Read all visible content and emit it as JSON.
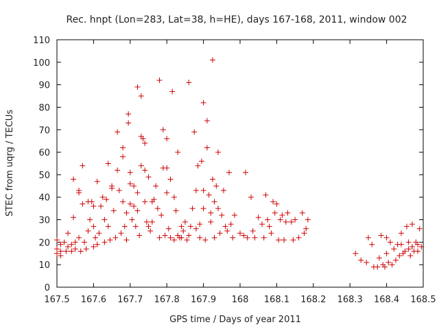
{
  "chart_data": {
    "type": "scatter",
    "title": "Rec. hnpt (Lon=283, Lat=38, h=HE), days 167-168, 2011, window 002",
    "xlabel": "GPS time / Days of year 2011",
    "ylabel": "STEC from uqrg / TECUs",
    "xlim": [
      167.5,
      168.5
    ],
    "ylim": [
      0,
      110
    ],
    "xticks": [
      "167.5",
      "167.6",
      "167.7",
      "167.8",
      "167.9",
      "168",
      "168.1",
      "168.2",
      "168.3",
      "168.4",
      "168.5"
    ],
    "yticks": [
      "0",
      "10",
      "20",
      "30",
      "40",
      "50",
      "60",
      "70",
      "80",
      "90",
      "100",
      "110"
    ],
    "marker": "+",
    "color": "#cc0000",
    "grid": false,
    "series": [
      {
        "points": [
          [
            167.5,
            15
          ],
          [
            167.5,
            17
          ],
          [
            167.5,
            21
          ],
          [
            167.51,
            14
          ],
          [
            167.51,
            16
          ],
          [
            167.51,
            19
          ],
          [
            167.52,
            20
          ],
          [
            167.525,
            16
          ],
          [
            167.53,
            24
          ],
          [
            167.53,
            18
          ],
          [
            167.54,
            19
          ],
          [
            167.54,
            16
          ],
          [
            167.545,
            31
          ],
          [
            167.545,
            48
          ],
          [
            167.55,
            20
          ],
          [
            167.55,
            17
          ],
          [
            167.56,
            43
          ],
          [
            167.56,
            42
          ],
          [
            167.56,
            22
          ],
          [
            167.565,
            16
          ],
          [
            167.57,
            37
          ],
          [
            167.57,
            54
          ],
          [
            167.575,
            20
          ],
          [
            167.58,
            17
          ],
          [
            167.585,
            25
          ],
          [
            167.585,
            38
          ],
          [
            167.59,
            30
          ],
          [
            167.595,
            38
          ],
          [
            167.6,
            36
          ],
          [
            167.6,
            27
          ],
          [
            167.6,
            18
          ],
          [
            167.605,
            22
          ],
          [
            167.61,
            47
          ],
          [
            167.61,
            19
          ],
          [
            167.615,
            24
          ],
          [
            167.62,
            36
          ],
          [
            167.625,
            40
          ],
          [
            167.63,
            30
          ],
          [
            167.63,
            20
          ],
          [
            167.635,
            39
          ],
          [
            167.64,
            55
          ],
          [
            167.64,
            27
          ],
          [
            167.645,
            21
          ],
          [
            167.65,
            45
          ],
          [
            167.65,
            44
          ],
          [
            167.655,
            34
          ],
          [
            167.66,
            22
          ],
          [
            167.665,
            52
          ],
          [
            167.665,
            69
          ],
          [
            167.67,
            43
          ],
          [
            167.675,
            24
          ],
          [
            167.68,
            62
          ],
          [
            167.68,
            58
          ],
          [
            167.68,
            38
          ],
          [
            167.685,
            27
          ],
          [
            167.69,
            33
          ],
          [
            167.69,
            21
          ],
          [
            167.695,
            77
          ],
          [
            167.695,
            73
          ],
          [
            167.7,
            51
          ],
          [
            167.7,
            46
          ],
          [
            167.7,
            37
          ],
          [
            167.705,
            30
          ],
          [
            167.71,
            36
          ],
          [
            167.71,
            45
          ],
          [
            167.715,
            27
          ],
          [
            167.72,
            89
          ],
          [
            167.72,
            42
          ],
          [
            167.72,
            34
          ],
          [
            167.725,
            23
          ],
          [
            167.73,
            85
          ],
          [
            167.73,
            67
          ],
          [
            167.73,
            54
          ],
          [
            167.735,
            66
          ],
          [
            167.74,
            64
          ],
          [
            167.74,
            52
          ],
          [
            167.74,
            38
          ],
          [
            167.745,
            29
          ],
          [
            167.75,
            27
          ],
          [
            167.75,
            49
          ],
          [
            167.755,
            25
          ],
          [
            167.76,
            38
          ],
          [
            167.76,
            29
          ],
          [
            167.765,
            39
          ],
          [
            167.77,
            45
          ],
          [
            167.775,
            35
          ],
          [
            167.78,
            92
          ],
          [
            167.78,
            22
          ],
          [
            167.785,
            32
          ],
          [
            167.79,
            53
          ],
          [
            167.79,
            70
          ],
          [
            167.795,
            23
          ],
          [
            167.8,
            66
          ],
          [
            167.8,
            53
          ],
          [
            167.8,
            42
          ],
          [
            167.805,
            26
          ],
          [
            167.81,
            48
          ],
          [
            167.81,
            22
          ],
          [
            167.815,
            87
          ],
          [
            167.82,
            40
          ],
          [
            167.82,
            21
          ],
          [
            167.825,
            34
          ],
          [
            167.83,
            60
          ],
          [
            167.83,
            23
          ],
          [
            167.835,
            22
          ],
          [
            167.84,
            27
          ],
          [
            167.84,
            22
          ],
          [
            167.845,
            25
          ],
          [
            167.85,
            29
          ],
          [
            167.855,
            21
          ],
          [
            167.86,
            91
          ],
          [
            167.86,
            23
          ],
          [
            167.865,
            27
          ],
          [
            167.87,
            35
          ],
          [
            167.875,
            69
          ],
          [
            167.88,
            43
          ],
          [
            167.88,
            26
          ],
          [
            167.885,
            54
          ],
          [
            167.89,
            28
          ],
          [
            167.89,
            22
          ],
          [
            167.895,
            56
          ],
          [
            167.9,
            82
          ],
          [
            167.9,
            43
          ],
          [
            167.9,
            35
          ],
          [
            167.905,
            21
          ],
          [
            167.91,
            74
          ],
          [
            167.91,
            62
          ],
          [
            167.915,
            41
          ],
          [
            167.92,
            33
          ],
          [
            167.92,
            29
          ],
          [
            167.925,
            101
          ],
          [
            167.925,
            48
          ],
          [
            167.93,
            38
          ],
          [
            167.93,
            22
          ],
          [
            167.935,
            45
          ],
          [
            167.94,
            60
          ],
          [
            167.94,
            35
          ],
          [
            167.945,
            24
          ],
          [
            167.95,
            32
          ],
          [
            167.955,
            43
          ],
          [
            167.96,
            27
          ],
          [
            167.965,
            25
          ],
          [
            167.97,
            51
          ],
          [
            167.975,
            28
          ],
          [
            167.98,
            22
          ],
          [
            167.985,
            32
          ],
          [
            168.0,
            24
          ],
          [
            168.01,
            23
          ],
          [
            168.015,
            51
          ],
          [
            168.02,
            22
          ],
          [
            168.03,
            40
          ],
          [
            168.035,
            25
          ],
          [
            168.04,
            22
          ],
          [
            168.05,
            31
          ],
          [
            168.06,
            28
          ],
          [
            168.065,
            22
          ],
          [
            168.07,
            41
          ],
          [
            168.075,
            30
          ],
          [
            168.08,
            27
          ],
          [
            168.085,
            24
          ],
          [
            168.09,
            38
          ],
          [
            168.095,
            33
          ],
          [
            168.1,
            37
          ],
          [
            168.105,
            21
          ],
          [
            168.11,
            30
          ],
          [
            168.115,
            32
          ],
          [
            168.12,
            21
          ],
          [
            168.125,
            29
          ],
          [
            168.13,
            33
          ],
          [
            168.14,
            29
          ],
          [
            168.145,
            21
          ],
          [
            168.15,
            30
          ],
          [
            168.16,
            22
          ],
          [
            168.17,
            33
          ],
          [
            168.175,
            24
          ],
          [
            168.18,
            26
          ],
          [
            168.185,
            30
          ],
          [
            168.315,
            15
          ],
          [
            168.33,
            12
          ],
          [
            168.345,
            11
          ],
          [
            168.35,
            22
          ],
          [
            168.36,
            19
          ],
          [
            168.365,
            9
          ],
          [
            168.375,
            9
          ],
          [
            168.38,
            13
          ],
          [
            168.385,
            23
          ],
          [
            168.39,
            10
          ],
          [
            168.395,
            9
          ],
          [
            168.4,
            22
          ],
          [
            168.4,
            15
          ],
          [
            168.405,
            11
          ],
          [
            168.41,
            20
          ],
          [
            168.415,
            10
          ],
          [
            168.42,
            17
          ],
          [
            168.425,
            12
          ],
          [
            168.43,
            19
          ],
          [
            168.435,
            14
          ],
          [
            168.44,
            24
          ],
          [
            168.44,
            19
          ],
          [
            168.445,
            15
          ],
          [
            168.45,
            16
          ],
          [
            168.455,
            27
          ],
          [
            168.46,
            20
          ],
          [
            168.46,
            17
          ],
          [
            168.465,
            14
          ],
          [
            168.47,
            28
          ],
          [
            168.47,
            18
          ],
          [
            168.475,
            16
          ],
          [
            168.48,
            20
          ],
          [
            168.485,
            19
          ],
          [
            168.485,
            16
          ],
          [
            168.49,
            26
          ],
          [
            168.495,
            18
          ]
        ]
      }
    ]
  }
}
